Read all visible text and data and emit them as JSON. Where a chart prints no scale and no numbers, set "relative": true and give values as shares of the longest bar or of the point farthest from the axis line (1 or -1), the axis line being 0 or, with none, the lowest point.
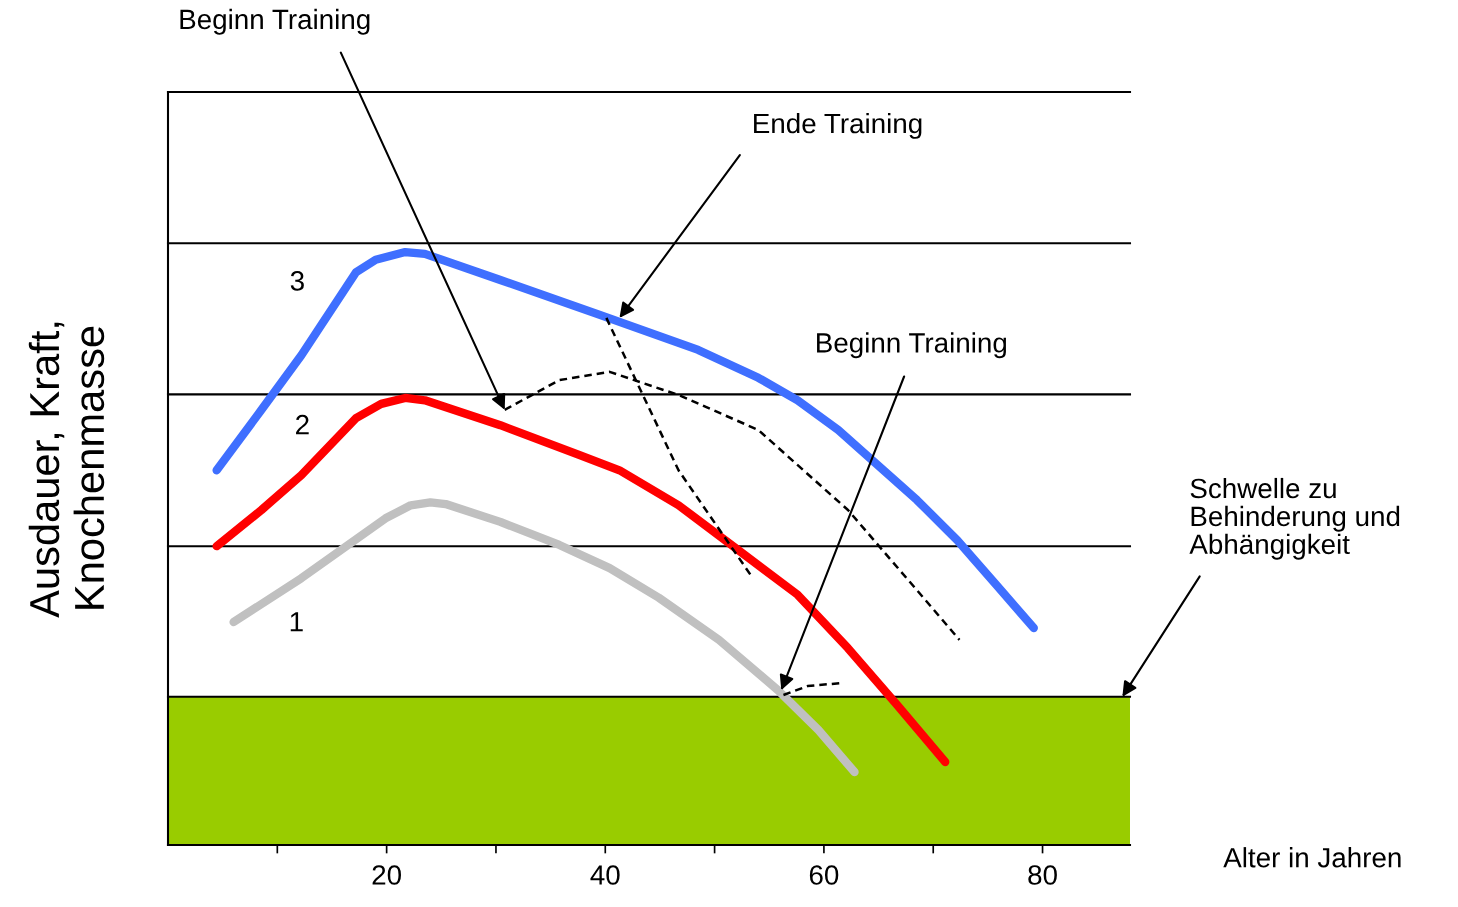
{
  "chart_data": {
    "type": "line",
    "relative": true,
    "xlabel": "Alter in Jahren",
    "ylabel": "Ausdauer, Kraft,\nKnochenmasse",
    "xlim": [
      0,
      88
    ],
    "xticks": [
      {
        "value": 10,
        "label": null
      },
      20,
      {
        "value": 30,
        "label": null
      },
      40,
      {
        "value": 50,
        "label": null
      },
      60,
      {
        "value": 70,
        "label": null
      },
      80
    ],
    "grid": false,
    "legend": false,
    "series": [
      {
        "name": "3",
        "color": "#3f6fff",
        "x": [
          4.45,
          8.55,
          12.2,
          17.2,
          19.0,
          21.7,
          23.5,
          30.4,
          39.5,
          48.5,
          54.0,
          57.6,
          61.3,
          64.9,
          68.5,
          72.2,
          75.8,
          79.2
        ],
        "values": [
          0.632,
          0.734,
          0.826,
          0.966,
          0.987,
          1.0,
          0.997,
          0.953,
          0.894,
          0.835,
          0.788,
          0.75,
          0.7,
          0.641,
          0.582,
          0.514,
          0.438,
          0.366
        ]
      },
      {
        "name": "2",
        "color": "#ff0000",
        "x": [
          4.45,
          8.55,
          12.2,
          17.2,
          19.5,
          21.7,
          23.5,
          30.4,
          37.6,
          41.3,
          46.7,
          52.2,
          57.6,
          62.2,
          66.7,
          71.1
        ],
        "values": [
          0.504,
          0.565,
          0.624,
          0.72,
          0.744,
          0.754,
          0.75,
          0.708,
          0.658,
          0.632,
          0.573,
          0.497,
          0.422,
          0.332,
          0.236,
          0.14
        ]
      },
      {
        "name": "1",
        "color": "#c0c0c0",
        "x": [
          6.0,
          12.2,
          19.9,
          22.2,
          24.0,
          25.4,
          30.4,
          35.8,
          40.4,
          44.9,
          50.4,
          55.8,
          59.5,
          62.8
        ],
        "values": [
          0.376,
          0.45,
          0.551,
          0.573,
          0.578,
          0.575,
          0.545,
          0.506,
          0.467,
          0.417,
          0.346,
          0.261,
          0.194,
          0.123
        ]
      },
      {
        "color": "#000000",
        "line_style": "dashed",
        "x": [
          30.8,
          35.8,
          40.4,
          46.7,
          54.0,
          62.2,
          68.5,
          72.4
        ],
        "values": [
          0.734,
          0.784,
          0.798,
          0.759,
          0.7,
          0.565,
          0.43,
          0.346
        ]
      },
      {
        "color": "#000000",
        "line_style": "dashed",
        "x": [
          40.1,
          46.7,
          53.5
        ],
        "values": [
          0.889,
          0.632,
          0.45
        ]
      },
      {
        "color": "#000000",
        "line_style": "dashed",
        "x": [
          56.3,
          58.5,
          61.5
        ],
        "values": [
          0.253,
          0.268,
          0.273
        ]
      }
    ],
    "ref_lines": [
      {
        "axis": "y",
        "value": 0.25,
        "label": null,
        "color": "#000000"
      },
      {
        "axis": "y",
        "value": 0.504,
        "label": null,
        "color": "#000000"
      },
      {
        "axis": "y",
        "value": 0.76,
        "label": null,
        "color": "#000000"
      },
      {
        "axis": "y",
        "value": 1.015,
        "label": null,
        "color": "#000000"
      },
      {
        "axis": "y",
        "value": 1.27,
        "label": null,
        "color": "#000000"
      }
    ],
    "bands": [
      {
        "axis": "y",
        "from": 0,
        "to": 0.25,
        "label": null,
        "color": "#99cc00"
      }
    ],
    "annotations": [
      {
        "text": "Beginn Training",
        "x": 30.8,
        "y": 0.734
      },
      {
        "text": "Ende Training",
        "x": 41.3,
        "y": 0.889
      },
      {
        "text": "Beginn Training",
        "x": 56.1,
        "y": 0.261
      },
      {
        "text": "Schwelle zu\nBehinderung und\nAbhängigkeit",
        "x": 87.3,
        "y": 0.25
      }
    ]
  }
}
